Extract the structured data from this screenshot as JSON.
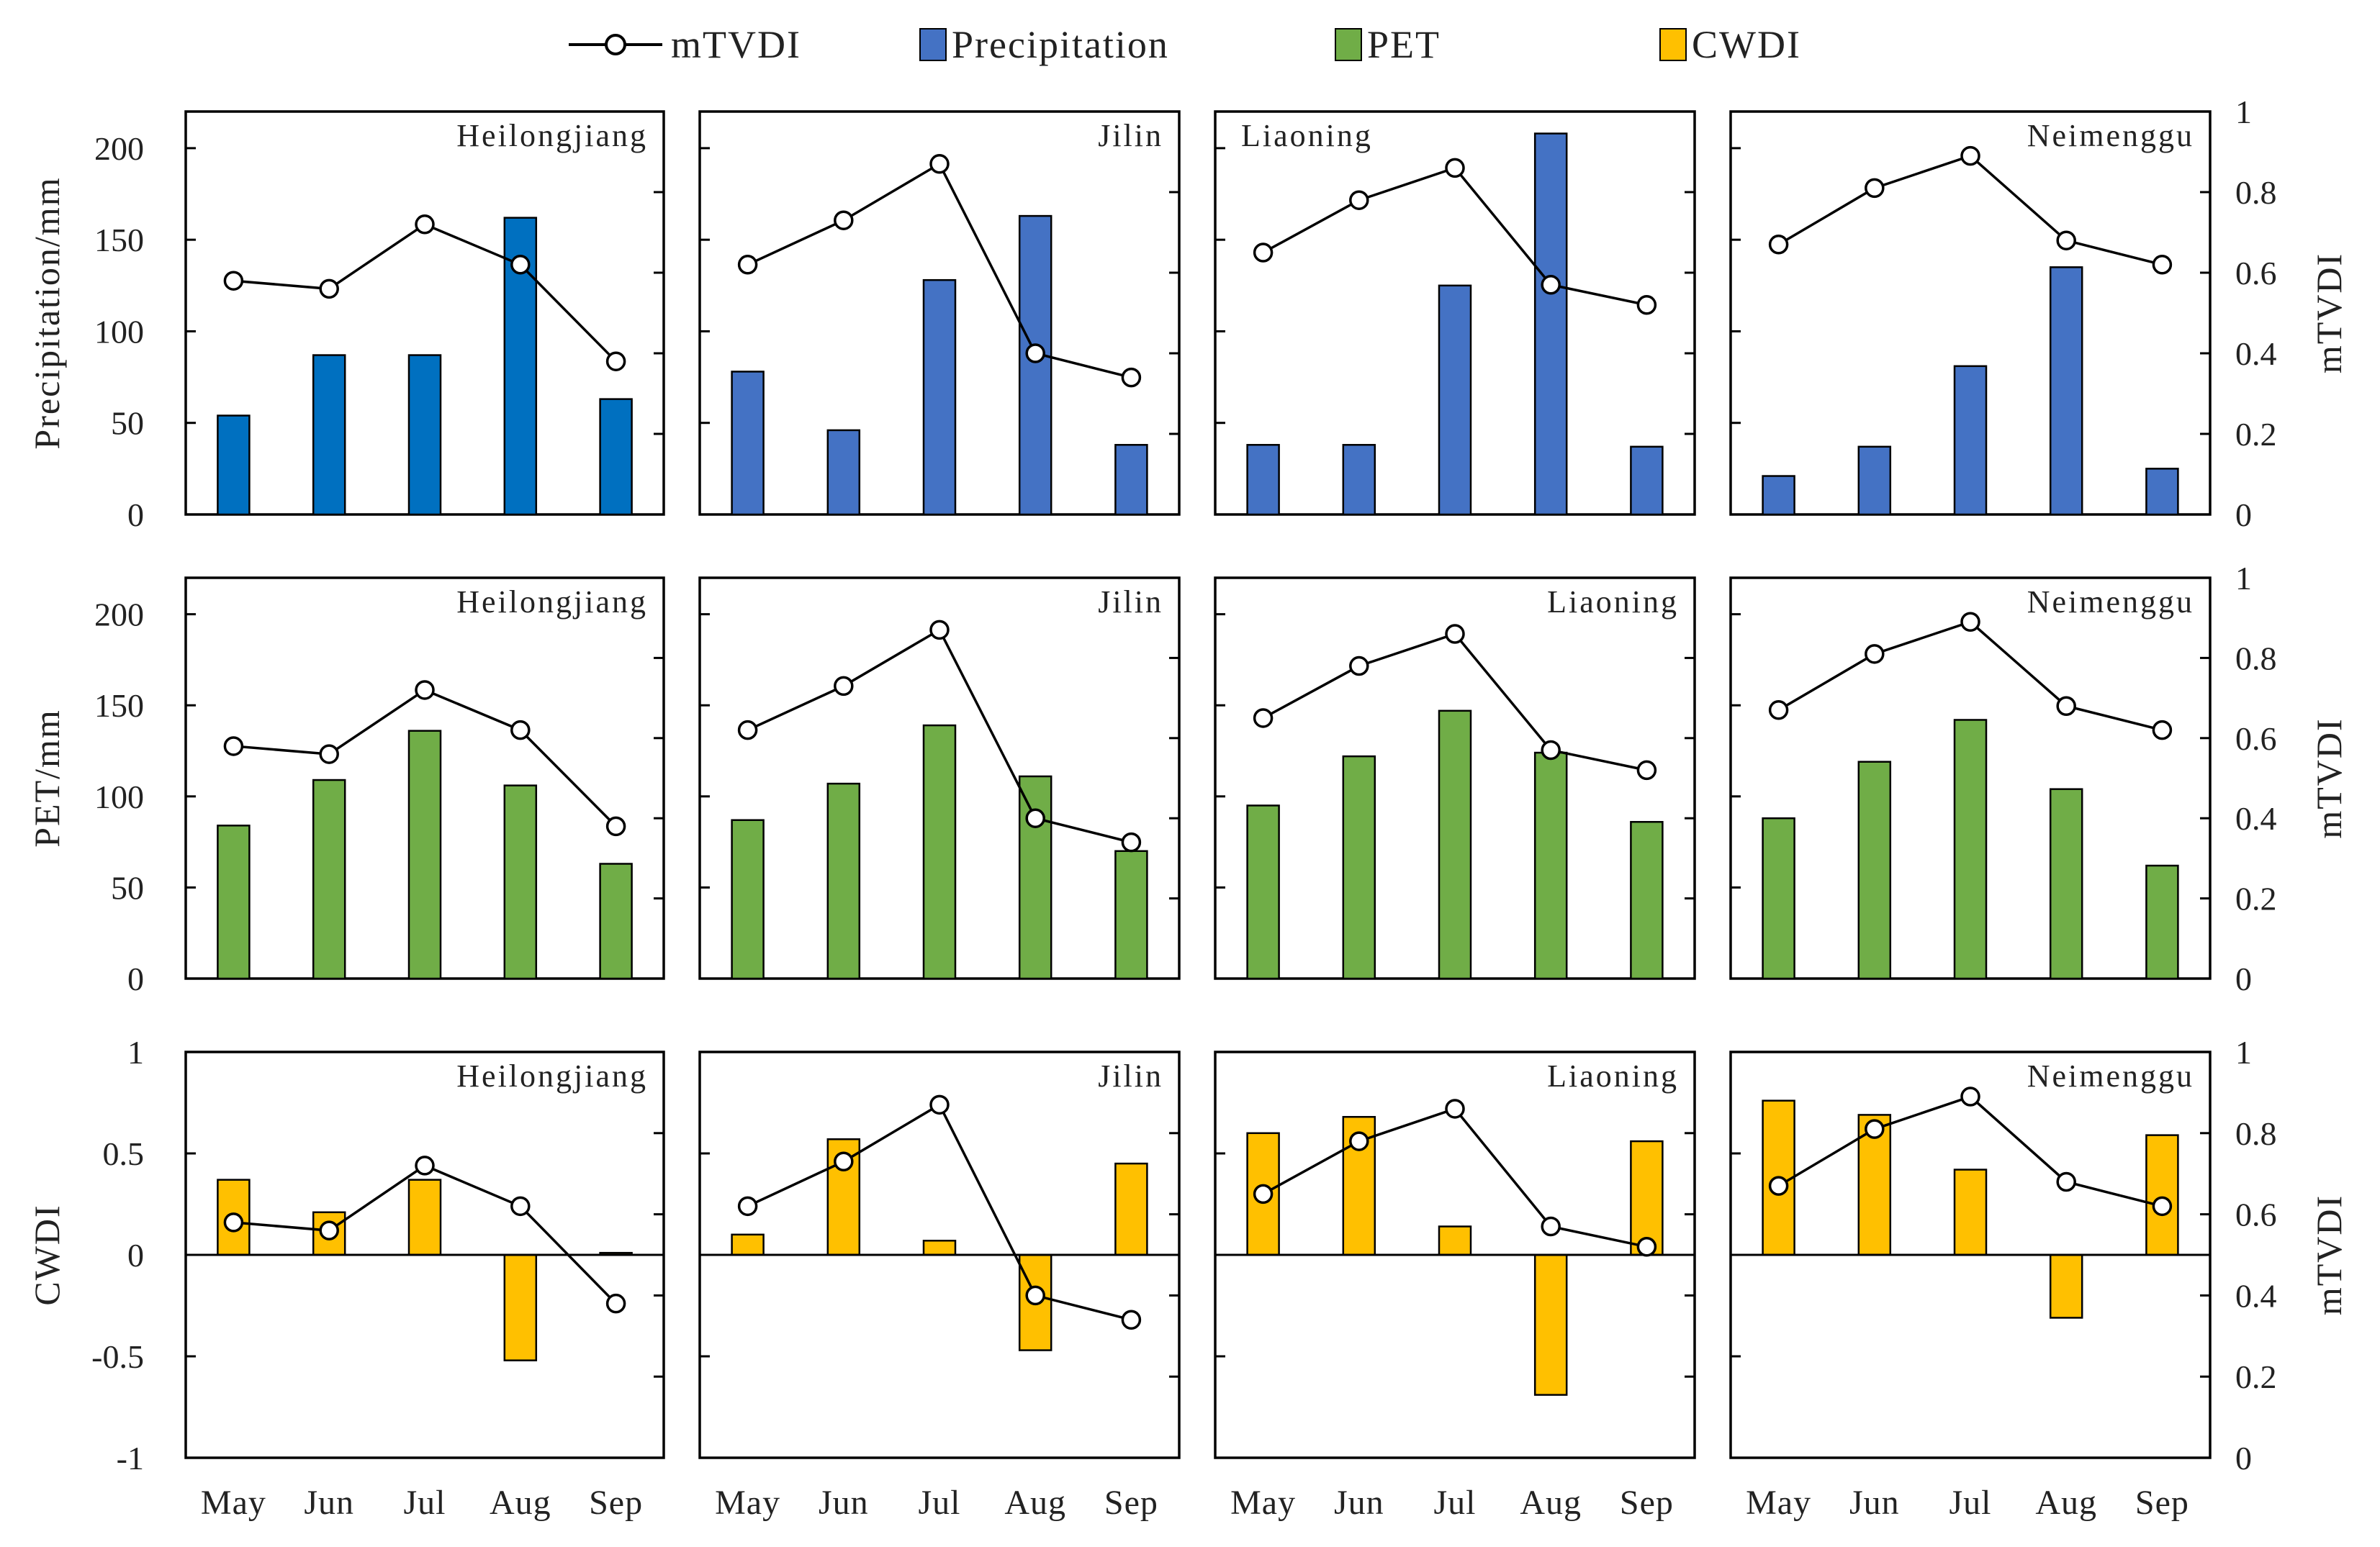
{
  "legend": [
    {
      "key": "mTVDI",
      "label": "mTVDI",
      "color": "#000000",
      "kind": "line"
    },
    {
      "key": "precipitation",
      "label": "Precipitation",
      "color": "#4472C4",
      "kind": "bar"
    },
    {
      "key": "pet",
      "label": "PET",
      "color": "#70AD47",
      "kind": "bar"
    },
    {
      "key": "cwdi",
      "label": "CWDI",
      "color": "#FFC000",
      "kind": "bar"
    }
  ],
  "colors": {
    "precip_heilongjiang": "#0070C0",
    "precip_other": "#4472C4",
    "pet": "#70AD47",
    "cwdi": "#FFC000",
    "line": "#000000"
  },
  "chart_data": {
    "type": "bar",
    "categories": [
      "May",
      "Jun",
      "Jul",
      "Aug",
      "Sep"
    ],
    "regions": [
      "Heilongjiang",
      "Jilin",
      "Liaoning",
      "Neimenggu"
    ],
    "mTVDI": {
      "Heilongjiang": [
        0.58,
        0.56,
        0.72,
        0.62,
        0.38
      ],
      "Jilin": [
        0.62,
        0.73,
        0.87,
        0.4,
        0.34
      ],
      "Liaoning": [
        0.65,
        0.78,
        0.86,
        0.57,
        0.52
      ],
      "Neimenggu": [
        0.67,
        0.81,
        0.89,
        0.68,
        0.62
      ]
    },
    "rows": [
      {
        "variable": "Precipitation",
        "ylabel": "Precipitation/mm",
        "left_ylim": [
          0,
          220
        ],
        "left_ticks": [
          0,
          50,
          100,
          150,
          200
        ],
        "values": {
          "Heilongjiang": [
            54,
            87,
            87,
            162,
            63
          ],
          "Jilin": [
            78,
            46,
            128,
            163,
            38
          ],
          "Liaoning": [
            38,
            38,
            125,
            208,
            37
          ],
          "Neimenggu": [
            21,
            37,
            81,
            135,
            25
          ]
        }
      },
      {
        "variable": "PET",
        "ylabel": "PET/mm",
        "left_ylim": [
          0,
          220
        ],
        "left_ticks": [
          0,
          50,
          100,
          150,
          200
        ],
        "values": {
          "Heilongjiang": [
            84,
            109,
            136,
            106,
            63
          ],
          "Jilin": [
            87,
            107,
            139,
            111,
            70
          ],
          "Liaoning": [
            95,
            122,
            147,
            124,
            86
          ],
          "Neimenggu": [
            88,
            119,
            142,
            104,
            62
          ]
        }
      },
      {
        "variable": "CWDI",
        "ylabel": "CWDI",
        "left_ylim": [
          -1,
          1
        ],
        "left_ticks": [
          -1,
          -0.5,
          0,
          0.5,
          1
        ],
        "left_tick_labels": [
          "-1",
          "-0.5",
          "0",
          "0.5",
          "1"
        ],
        "values": {
          "Heilongjiang": [
            0.37,
            0.21,
            0.37,
            -0.52,
            0.01
          ],
          "Jilin": [
            0.1,
            0.57,
            0.07,
            -0.47,
            0.45
          ],
          "Liaoning": [
            0.6,
            0.68,
            0.14,
            -0.69,
            0.56
          ],
          "Neimenggu": [
            0.76,
            0.69,
            0.42,
            -0.31,
            0.59
          ]
        }
      }
    ],
    "right_axis": {
      "label": "mTVDI",
      "ylim": [
        0,
        1
      ],
      "ticks": [
        0,
        0.2,
        0.4,
        0.6,
        0.8,
        1
      ],
      "tick_labels": [
        "0",
        "0.2",
        "0.4",
        "0.6",
        "0.8",
        "1"
      ]
    }
  }
}
